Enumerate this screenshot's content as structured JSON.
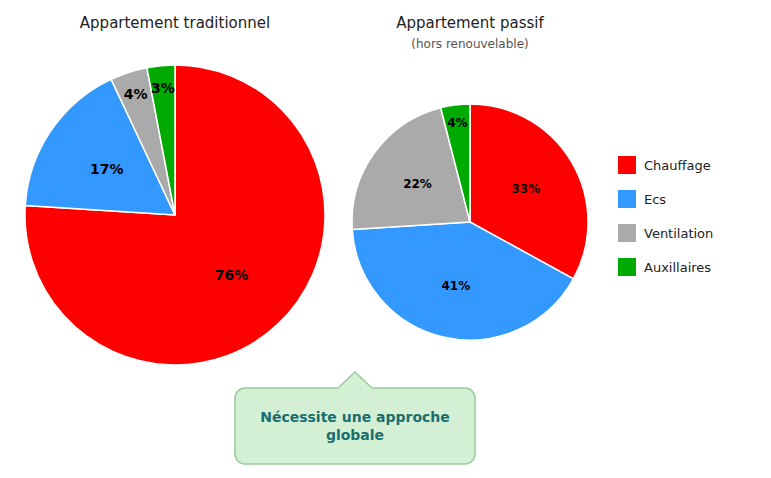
{
  "chart_data": [
    {
      "type": "pie",
      "title": "Appartement traditionnel",
      "categories": [
        "Chauffage",
        "Ecs",
        "Ventilation",
        "Auxillaires"
      ],
      "values": [
        76,
        17,
        4,
        3
      ],
      "value_labels": [
        "76%",
        "17%",
        "4%",
        "3%"
      ],
      "colors": [
        "#ff0000",
        "#3399ff",
        "#aaaaaa",
        "#00aa00"
      ],
      "data_labels": true,
      "legend": "right",
      "annotations": [
        "Nécessite une approche\nglobale"
      ]
    },
    {
      "type": "pie",
      "title": "Appartement passif",
      "subtitle": "(hors renouvelable)",
      "categories": [
        "Chauffage",
        "Ecs",
        "Ventilation",
        "Auxillaires"
      ],
      "values": [
        33,
        41,
        22,
        4
      ],
      "value_labels": [
        "33%",
        "41%",
        "22%",
        "4%"
      ],
      "colors": [
        "#ff0000",
        "#3399ff",
        "#aaaaaa",
        "#00aa00"
      ],
      "data_labels": true
    }
  ]
}
